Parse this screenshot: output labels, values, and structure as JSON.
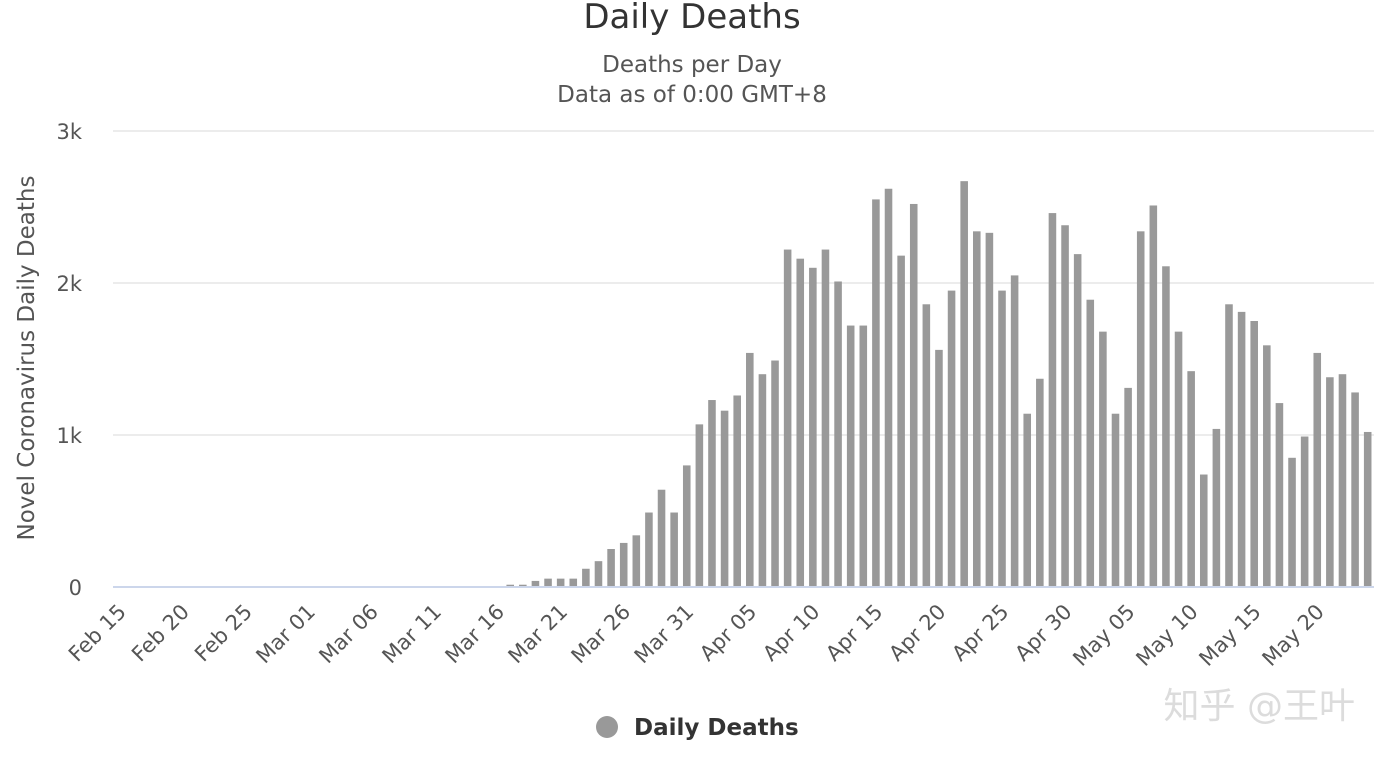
{
  "chart_data": {
    "type": "bar",
    "title": "Daily Deaths",
    "subtitle": "Deaths per Day",
    "subtitle2": "Data as of 0:00 GMT+8",
    "ylabel": "Novel Coronavirus Daily Deaths",
    "xlabel": "",
    "ylim": [
      0,
      3000
    ],
    "yticks": [
      0,
      1000,
      2000,
      3000
    ],
    "ytick_labels": [
      "0",
      "1k",
      "2k",
      "3k"
    ],
    "grid": true,
    "legend_position": "bottom-center",
    "color": "#999999",
    "x_tick_labels": [
      "Feb 15",
      "Feb 20",
      "Feb 25",
      "Mar 01",
      "Mar 06",
      "Mar 11",
      "Mar 16",
      "Mar 21",
      "Mar 26",
      "Mar 31",
      "Apr 05",
      "Apr 10",
      "Apr 15",
      "Apr 20",
      "Apr 25",
      "Apr 30",
      "May 05",
      "May 10",
      "May 15",
      "May 20"
    ],
    "x_tick_every": 5,
    "x_start": "Feb 15",
    "x_end": "May 23",
    "series": [
      {
        "name": "Daily Deaths",
        "values": [
          0,
          0,
          0,
          0,
          0,
          0,
          0,
          0,
          0,
          0,
          0,
          0,
          0,
          0,
          0,
          0,
          0,
          0,
          0,
          0,
          0,
          0,
          0,
          0,
          0,
          0,
          0,
          0,
          0,
          0,
          0,
          15,
          15,
          40,
          55,
          55,
          55,
          120,
          170,
          250,
          290,
          340,
          490,
          640,
          490,
          800,
          1070,
          1230,
          1160,
          1260,
          1540,
          1400,
          1490,
          2220,
          2160,
          2100,
          2220,
          2010,
          1720,
          1720,
          2550,
          2620,
          2180,
          2520,
          1860,
          1560,
          1950,
          2670,
          2340,
          2330,
          1950,
          2050,
          1140,
          1370,
          2460,
          2380,
          2190,
          1890,
          1680,
          1140,
          1310,
          2340,
          2510,
          2110,
          1680,
          1420,
          740,
          1040,
          1860,
          1810,
          1750,
          1590,
          1210,
          850,
          990,
          1540,
          1380,
          1400,
          1280,
          1020
        ]
      }
    ]
  },
  "legend": {
    "label": "Daily Deaths"
  },
  "watermark": {
    "text": "知乎 @王叶"
  }
}
